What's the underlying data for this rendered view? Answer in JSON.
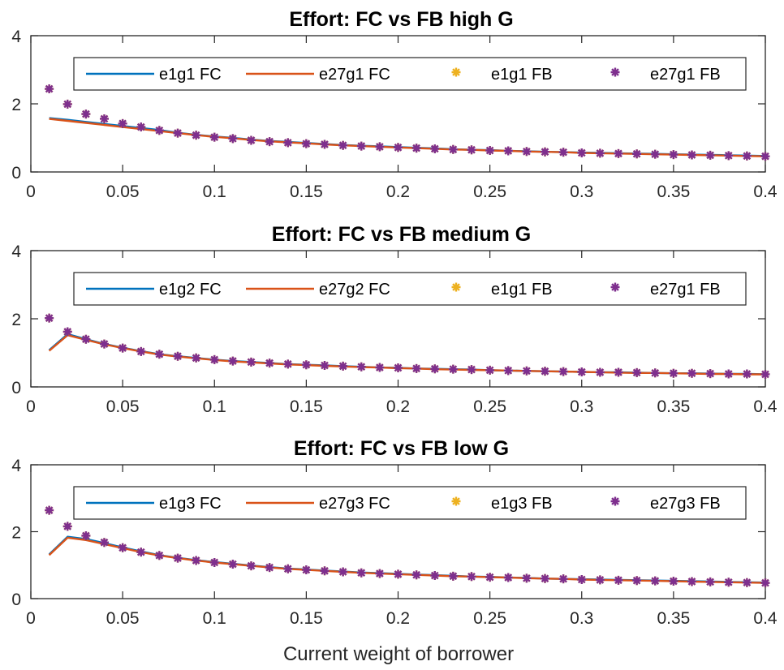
{
  "xlabel": "Current weight of borrower",
  "colors": {
    "fc1": "#0072BD",
    "fc2": "#D95319",
    "fb1": "#EDB120",
    "fb2": "#7E2F8E"
  },
  "chart_data": [
    {
      "type": "line",
      "title": "Effort: FC vs FB high G",
      "xlim": [
        0,
        0.4
      ],
      "ylim": [
        0,
        4
      ],
      "xticks": [
        "0",
        "0.05",
        "0.1",
        "0.15",
        "0.2",
        "0.25",
        "0.3",
        "0.35",
        "0.4"
      ],
      "yticks": [
        "0",
        "2",
        "4"
      ],
      "legend_position": "top-right",
      "x": [
        0.01,
        0.02,
        0.03,
        0.04,
        0.05,
        0.06,
        0.07,
        0.08,
        0.09,
        0.1,
        0.11,
        0.12,
        0.13,
        0.14,
        0.15,
        0.16,
        0.17,
        0.18,
        0.19,
        0.2,
        0.21,
        0.22,
        0.23,
        0.24,
        0.25,
        0.26,
        0.27,
        0.28,
        0.29,
        0.3,
        0.31,
        0.32,
        0.33,
        0.34,
        0.35,
        0.36,
        0.37,
        0.38,
        0.39,
        0.4
      ],
      "series": [
        {
          "name": "e1g1 FC",
          "style": "line",
          "values": [
            1.58,
            1.53,
            1.47,
            1.41,
            1.35,
            1.29,
            1.23,
            1.15,
            1.09,
            1.04,
            1.0,
            0.95,
            0.91,
            0.88,
            0.85,
            0.82,
            0.79,
            0.77,
            0.75,
            0.73,
            0.71,
            0.69,
            0.67,
            0.65,
            0.64,
            0.62,
            0.61,
            0.59,
            0.58,
            0.57,
            0.56,
            0.55,
            0.54,
            0.53,
            0.52,
            0.51,
            0.5,
            0.49,
            0.48,
            0.47
          ]
        },
        {
          "name": "e27g1 FC",
          "style": "line",
          "values": [
            1.56,
            1.5,
            1.44,
            1.38,
            1.32,
            1.26,
            1.2,
            1.14,
            1.08,
            1.03,
            0.99,
            0.94,
            0.9,
            0.87,
            0.84,
            0.81,
            0.78,
            0.76,
            0.74,
            0.72,
            0.7,
            0.68,
            0.66,
            0.65,
            0.63,
            0.62,
            0.6,
            0.59,
            0.58,
            0.56,
            0.55,
            0.54,
            0.53,
            0.52,
            0.51,
            0.5,
            0.49,
            0.48,
            0.47,
            0.46
          ]
        },
        {
          "name": "e1g1 FB",
          "style": "marker",
          "values": [
            2.44,
            1.99,
            1.7,
            1.56,
            1.42,
            1.32,
            1.22,
            1.14,
            1.08,
            1.02,
            0.98,
            0.93,
            0.89,
            0.86,
            0.83,
            0.81,
            0.78,
            0.76,
            0.74,
            0.72,
            0.7,
            0.68,
            0.66,
            0.65,
            0.63,
            0.62,
            0.6,
            0.59,
            0.58,
            0.56,
            0.55,
            0.54,
            0.53,
            0.52,
            0.51,
            0.5,
            0.49,
            0.48,
            0.47,
            0.46
          ]
        },
        {
          "name": "e27g1 FB",
          "style": "marker",
          "values": [
            2.44,
            1.99,
            1.7,
            1.56,
            1.42,
            1.32,
            1.22,
            1.14,
            1.08,
            1.02,
            0.98,
            0.93,
            0.89,
            0.86,
            0.83,
            0.81,
            0.78,
            0.76,
            0.74,
            0.72,
            0.7,
            0.68,
            0.66,
            0.65,
            0.63,
            0.62,
            0.6,
            0.59,
            0.58,
            0.56,
            0.55,
            0.54,
            0.53,
            0.52,
            0.51,
            0.5,
            0.49,
            0.48,
            0.47,
            0.46
          ]
        }
      ]
    },
    {
      "type": "line",
      "title": "Effort: FC vs FB medium G",
      "xlim": [
        0,
        0.4
      ],
      "ylim": [
        0,
        4
      ],
      "xticks": [
        "0",
        "0.05",
        "0.1",
        "0.15",
        "0.2",
        "0.25",
        "0.3",
        "0.35",
        "0.4"
      ],
      "yticks": [
        "0",
        "2",
        "4"
      ],
      "legend_position": "top-right",
      "x": [
        0.01,
        0.02,
        0.03,
        0.04,
        0.05,
        0.06,
        0.07,
        0.08,
        0.09,
        0.1,
        0.11,
        0.12,
        0.13,
        0.14,
        0.15,
        0.16,
        0.17,
        0.18,
        0.19,
        0.2,
        0.21,
        0.22,
        0.23,
        0.24,
        0.25,
        0.26,
        0.27,
        0.28,
        0.29,
        0.3,
        0.31,
        0.32,
        0.33,
        0.34,
        0.35,
        0.36,
        0.37,
        0.38,
        0.39,
        0.4
      ],
      "series": [
        {
          "name": "e1g2 FC",
          "style": "line",
          "values": [
            1.08,
            1.55,
            1.4,
            1.26,
            1.15,
            1.05,
            0.96,
            0.9,
            0.85,
            0.8,
            0.76,
            0.73,
            0.7,
            0.67,
            0.65,
            0.63,
            0.61,
            0.59,
            0.57,
            0.56,
            0.54,
            0.53,
            0.52,
            0.51,
            0.49,
            0.48,
            0.47,
            0.46,
            0.45,
            0.44,
            0.43,
            0.43,
            0.42,
            0.41,
            0.4,
            0.4,
            0.39,
            0.38,
            0.38,
            0.37
          ]
        },
        {
          "name": "e27g2 FC",
          "style": "line",
          "values": [
            1.06,
            1.52,
            1.38,
            1.25,
            1.14,
            1.04,
            0.95,
            0.89,
            0.84,
            0.79,
            0.75,
            0.72,
            0.69,
            0.66,
            0.64,
            0.62,
            0.6,
            0.58,
            0.57,
            0.55,
            0.54,
            0.52,
            0.51,
            0.5,
            0.49,
            0.48,
            0.47,
            0.46,
            0.45,
            0.44,
            0.43,
            0.42,
            0.41,
            0.41,
            0.4,
            0.39,
            0.38,
            0.38,
            0.37,
            0.37
          ]
        },
        {
          "name": "e1g1 FB",
          "style": "marker",
          "values": [
            2.02,
            1.62,
            1.4,
            1.26,
            1.14,
            1.04,
            0.96,
            0.9,
            0.85,
            0.8,
            0.76,
            0.73,
            0.7,
            0.67,
            0.65,
            0.63,
            0.61,
            0.59,
            0.57,
            0.56,
            0.54,
            0.53,
            0.52,
            0.51,
            0.49,
            0.48,
            0.47,
            0.46,
            0.45,
            0.44,
            0.43,
            0.43,
            0.42,
            0.41,
            0.4,
            0.4,
            0.39,
            0.38,
            0.38,
            0.37
          ]
        },
        {
          "name": "e27g1 FB",
          "style": "marker",
          "values": [
            2.02,
            1.62,
            1.4,
            1.26,
            1.14,
            1.04,
            0.96,
            0.9,
            0.85,
            0.8,
            0.76,
            0.73,
            0.7,
            0.67,
            0.65,
            0.63,
            0.61,
            0.59,
            0.57,
            0.56,
            0.54,
            0.53,
            0.52,
            0.51,
            0.49,
            0.48,
            0.47,
            0.46,
            0.45,
            0.44,
            0.43,
            0.43,
            0.42,
            0.41,
            0.4,
            0.4,
            0.39,
            0.38,
            0.38,
            0.37
          ]
        }
      ]
    },
    {
      "type": "line",
      "title": "Effort: FC vs FB low G",
      "xlim": [
        0,
        0.4
      ],
      "ylim": [
        0,
        4
      ],
      "xticks": [
        "0",
        "0.05",
        "0.1",
        "0.15",
        "0.2",
        "0.25",
        "0.3",
        "0.35",
        "0.4"
      ],
      "yticks": [
        "0",
        "2",
        "4"
      ],
      "legend_position": "top-right",
      "x": [
        0.01,
        0.02,
        0.03,
        0.04,
        0.05,
        0.06,
        0.07,
        0.08,
        0.09,
        0.1,
        0.11,
        0.12,
        0.13,
        0.14,
        0.15,
        0.16,
        0.17,
        0.18,
        0.19,
        0.2,
        0.21,
        0.22,
        0.23,
        0.24,
        0.25,
        0.26,
        0.27,
        0.28,
        0.29,
        0.3,
        0.31,
        0.32,
        0.33,
        0.34,
        0.35,
        0.36,
        0.37,
        0.38,
        0.39,
        0.4
      ],
      "series": [
        {
          "name": "e1g3 FC",
          "style": "line",
          "values": [
            1.32,
            1.85,
            1.78,
            1.66,
            1.53,
            1.41,
            1.3,
            1.22,
            1.15,
            1.09,
            1.04,
            0.99,
            0.94,
            0.9,
            0.87,
            0.84,
            0.81,
            0.78,
            0.76,
            0.74,
            0.72,
            0.7,
            0.68,
            0.66,
            0.65,
            0.63,
            0.62,
            0.6,
            0.59,
            0.58,
            0.57,
            0.56,
            0.55,
            0.54,
            0.53,
            0.52,
            0.51,
            0.5,
            0.49,
            0.48
          ]
        },
        {
          "name": "e27g3 FC",
          "style": "line",
          "values": [
            1.3,
            1.82,
            1.75,
            1.63,
            1.51,
            1.39,
            1.29,
            1.21,
            1.14,
            1.08,
            1.03,
            0.98,
            0.93,
            0.89,
            0.86,
            0.83,
            0.8,
            0.77,
            0.75,
            0.73,
            0.71,
            0.69,
            0.67,
            0.66,
            0.64,
            0.63,
            0.61,
            0.6,
            0.59,
            0.57,
            0.56,
            0.55,
            0.54,
            0.53,
            0.52,
            0.51,
            0.5,
            0.49,
            0.48,
            0.47
          ]
        },
        {
          "name": "e1g3 FB",
          "style": "marker",
          "values": [
            2.64,
            2.16,
            1.88,
            1.68,
            1.52,
            1.39,
            1.29,
            1.21,
            1.14,
            1.08,
            1.03,
            0.98,
            0.93,
            0.89,
            0.86,
            0.83,
            0.8,
            0.77,
            0.75,
            0.73,
            0.71,
            0.69,
            0.67,
            0.66,
            0.64,
            0.63,
            0.61,
            0.6,
            0.59,
            0.57,
            0.56,
            0.55,
            0.54,
            0.53,
            0.52,
            0.51,
            0.5,
            0.49,
            0.48,
            0.47
          ]
        },
        {
          "name": "e27g3 FB",
          "style": "marker",
          "values": [
            2.64,
            2.16,
            1.88,
            1.68,
            1.52,
            1.39,
            1.29,
            1.21,
            1.14,
            1.08,
            1.03,
            0.98,
            0.93,
            0.89,
            0.86,
            0.83,
            0.8,
            0.77,
            0.75,
            0.73,
            0.71,
            0.69,
            0.67,
            0.66,
            0.64,
            0.63,
            0.61,
            0.6,
            0.59,
            0.57,
            0.56,
            0.55,
            0.54,
            0.53,
            0.52,
            0.51,
            0.5,
            0.49,
            0.48,
            0.47
          ]
        }
      ]
    }
  ]
}
